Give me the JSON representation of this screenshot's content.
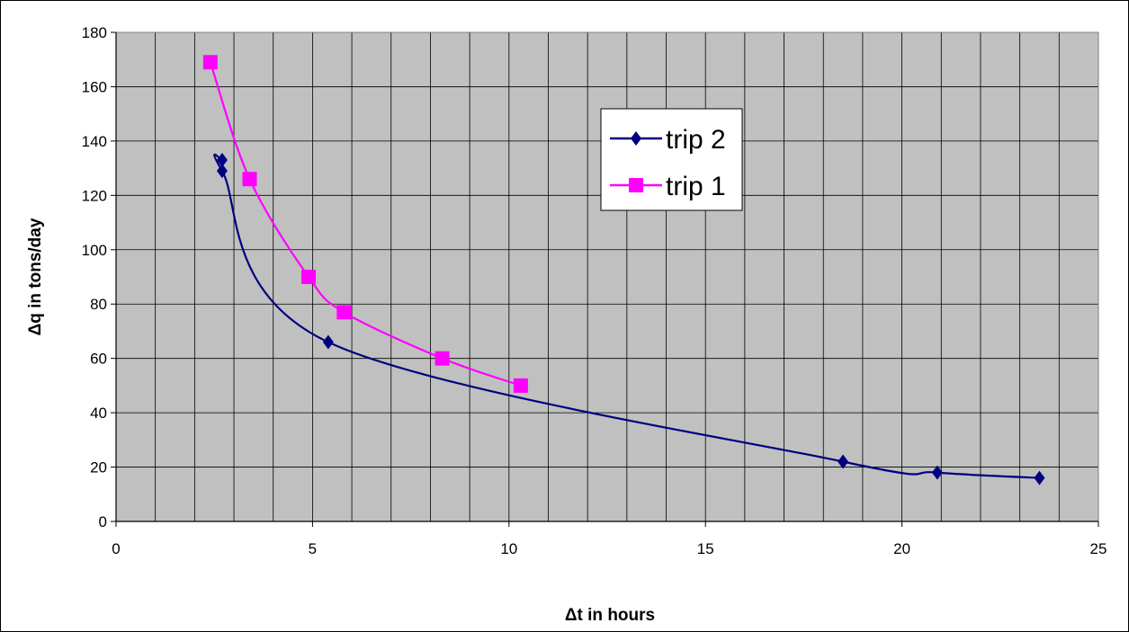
{
  "chart_data": {
    "type": "scatter",
    "xlabel": "Δt in hours",
    "ylabel": "Δq in tons/day",
    "xlim": [
      0,
      25
    ],
    "ylim": [
      0,
      180
    ],
    "x_ticks": [
      0,
      5,
      10,
      15,
      20,
      25
    ],
    "y_ticks": [
      0,
      20,
      40,
      60,
      80,
      100,
      120,
      140,
      160,
      180
    ],
    "grid": true,
    "legend_position": "top-center",
    "plot_background": "#c0c0c0",
    "series": [
      {
        "name": "trip 2",
        "color": "#000080",
        "marker": "diamond",
        "smooth": true,
        "points": [
          {
            "x": 2.7,
            "y": 133
          },
          {
            "x": 2.7,
            "y": 129
          },
          {
            "x": 5.4,
            "y": 66
          },
          {
            "x": 18.5,
            "y": 22
          },
          {
            "x": 20.9,
            "y": 18
          },
          {
            "x": 23.5,
            "y": 16
          }
        ]
      },
      {
        "name": "trip 1",
        "color": "#ff00ff",
        "marker": "square",
        "smooth": true,
        "points": [
          {
            "x": 2.4,
            "y": 169
          },
          {
            "x": 3.4,
            "y": 126
          },
          {
            "x": 4.9,
            "y": 90
          },
          {
            "x": 5.8,
            "y": 77
          },
          {
            "x": 8.3,
            "y": 60
          },
          {
            "x": 10.3,
            "y": 50
          }
        ]
      }
    ]
  }
}
